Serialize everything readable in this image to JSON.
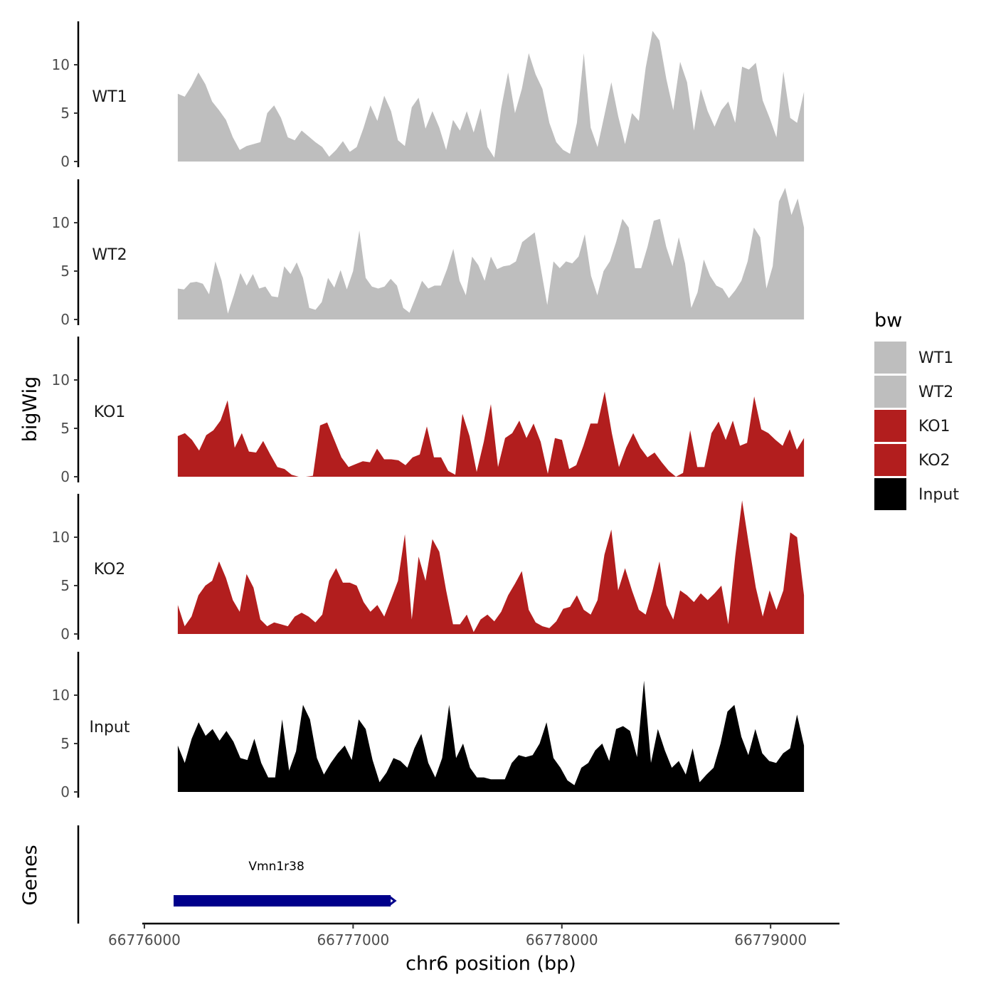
{
  "chart_data": {
    "type": "area",
    "region": "chr6",
    "xlabel": "chr6 position (bp)",
    "ylabel": "bigWig",
    "genes_label": "Genes",
    "xlim": [
      66775990,
      66779330
    ],
    "ylim": [
      0,
      14
    ],
    "x_ticks": [
      66776000,
      66777000,
      66778000,
      66779000
    ],
    "x_tick_labels": [
      "66776000",
      "66777000",
      "66778000",
      "66779000"
    ],
    "y_ticks": [
      0,
      5,
      10
    ],
    "y_tick_labels": [
      "0",
      "5",
      "10"
    ],
    "x_start": 66776160,
    "x_end": 66779160,
    "legend": {
      "title": "bw",
      "entries": [
        {
          "label": "WT1",
          "color": "#bebebe"
        },
        {
          "label": "WT2",
          "color": "#bebebe"
        },
        {
          "label": "KO1",
          "color": "#b21e1e"
        },
        {
          "label": "KO2",
          "color": "#b21e1e"
        },
        {
          "label": "Input",
          "color": "#000000"
        }
      ]
    },
    "tracks": [
      {
        "name": "WT1",
        "color": "#bebebe",
        "values": [
          7.0,
          6.7,
          7.8,
          9.2,
          8.0,
          6.2,
          5.3,
          4.3,
          2.5,
          1.2,
          1.6,
          1.8,
          2.0,
          5.0,
          5.8,
          4.5,
          2.5,
          2.2,
          3.2,
          2.6,
          2.0,
          1.5,
          0.5,
          1.2,
          2.1,
          1.0,
          1.5,
          3.5,
          5.8,
          4.2,
          6.8,
          5.2,
          2.2,
          1.6,
          5.6,
          6.6,
          3.4,
          5.2,
          3.5,
          1.2,
          4.3,
          3.2,
          5.2,
          3.0,
          5.5,
          1.5,
          0.4,
          5.5,
          9.2,
          5.0,
          7.5,
          11.2,
          9.0,
          7.5,
          4.0,
          2.0,
          1.2,
          0.8,
          4.0,
          11.2,
          3.5,
          1.5,
          4.8,
          8.2,
          4.7,
          1.8,
          5.0,
          4.2,
          9.7,
          13.5,
          12.5,
          8.5,
          5.3,
          10.3,
          8.2,
          3.2,
          7.5,
          5.2,
          3.6,
          5.3,
          6.2,
          4.0,
          9.8,
          9.5,
          10.2,
          6.3,
          4.5,
          2.5,
          9.3,
          4.5,
          4.0,
          7.2
        ]
      },
      {
        "name": "WT2",
        "color": "#bebebe",
        "values": [
          3.2,
          3.1,
          3.8,
          3.9,
          3.7,
          2.6,
          6.0,
          4.0,
          0.6,
          2.6,
          4.8,
          3.5,
          4.7,
          3.2,
          3.4,
          2.4,
          2.3,
          5.5,
          4.7,
          5.9,
          4.3,
          1.2,
          1.0,
          1.8,
          4.3,
          3.3,
          5.1,
          3.1,
          5.0,
          9.2,
          4.3,
          3.4,
          3.2,
          3.4,
          4.2,
          3.5,
          1.2,
          0.7,
          2.3,
          4.0,
          3.2,
          3.5,
          3.5,
          5.2,
          7.3,
          4.0,
          2.5,
          6.5,
          5.6,
          4.0,
          6.5,
          5.2,
          5.5,
          5.6,
          6.0,
          8.0,
          8.5,
          9.0,
          5.2,
          1.5,
          6.0,
          5.3,
          6.0,
          5.8,
          6.5,
          8.8,
          4.5,
          2.5,
          5.0,
          6.0,
          8.0,
          10.4,
          9.5,
          5.3,
          5.3,
          7.5,
          10.2,
          10.4,
          7.5,
          5.5,
          8.5,
          5.8,
          1.2,
          2.8,
          6.2,
          4.5,
          3.5,
          3.2,
          2.2,
          3.0,
          4.0,
          6.0,
          9.5,
          8.5,
          3.2,
          5.5,
          12.2,
          13.6,
          10.8,
          12.5,
          9.5
        ]
      },
      {
        "name": "KO1",
        "color": "#b21e1e",
        "values": [
          4.2,
          4.5,
          3.8,
          2.7,
          4.3,
          4.8,
          5.8,
          7.9,
          3.0,
          4.5,
          2.6,
          2.5,
          3.7,
          2.3,
          1.0,
          0.8,
          0.2,
          0.0,
          0.0,
          0.1,
          5.3,
          5.6,
          3.8,
          2.0,
          1.0,
          1.3,
          1.6,
          1.5,
          2.9,
          1.8,
          1.8,
          1.7,
          1.2,
          2.0,
          2.3,
          5.2,
          2.0,
          2.0,
          0.6,
          0.2,
          6.5,
          4.2,
          0.5,
          3.6,
          7.5,
          1.0,
          4.0,
          4.5,
          5.8,
          4.0,
          5.5,
          3.6,
          0.3,
          4.0,
          3.8,
          0.8,
          1.2,
          3.2,
          5.5,
          5.5,
          8.8,
          4.5,
          1.0,
          3.0,
          4.5,
          3.0,
          2.0,
          2.5,
          1.5,
          0.6,
          0.0,
          0.4,
          4.8,
          1.0,
          1.0,
          4.5,
          5.7,
          3.8,
          5.8,
          3.2,
          3.5,
          8.3,
          4.9,
          4.5,
          3.8,
          3.2,
          4.9,
          2.8,
          4.0
        ]
      },
      {
        "name": "KO2",
        "color": "#b21e1e",
        "values": [
          3.0,
          0.8,
          1.8,
          4.0,
          5.0,
          5.5,
          7.5,
          5.8,
          3.5,
          2.3,
          6.2,
          4.8,
          1.5,
          0.8,
          1.2,
          1.0,
          0.8,
          1.8,
          2.2,
          1.8,
          1.2,
          2.0,
          5.5,
          6.8,
          5.3,
          5.3,
          5.0,
          3.3,
          2.3,
          3.0,
          1.8,
          3.6,
          5.5,
          10.3,
          1.5,
          8.0,
          5.5,
          9.8,
          8.5,
          4.5,
          1.0,
          1.0,
          2.0,
          0.2,
          1.5,
          2.0,
          1.3,
          2.3,
          4.0,
          5.2,
          6.5,
          2.5,
          1.2,
          0.8,
          0.6,
          1.3,
          2.6,
          2.8,
          4.0,
          2.5,
          2.0,
          3.5,
          8.2,
          10.8,
          4.5,
          6.8,
          4.5,
          2.5,
          2.0,
          4.5,
          7.5,
          3.0,
          1.5,
          4.5,
          4.0,
          3.3,
          4.2,
          3.5,
          4.2,
          5.0,
          1.0,
          8.0,
          13.8,
          9.2,
          4.8,
          1.8,
          4.5,
          2.5,
          4.5,
          10.5,
          10.0,
          4.0
        ]
      },
      {
        "name": "Input",
        "color": "#000000",
        "values": [
          4.8,
          3.0,
          5.5,
          7.2,
          5.8,
          6.5,
          5.3,
          6.3,
          5.2,
          3.5,
          3.3,
          5.5,
          3.0,
          1.5,
          1.5,
          7.5,
          2.2,
          4.2,
          9.0,
          7.5,
          3.5,
          1.8,
          3.0,
          4.0,
          4.8,
          3.3,
          7.5,
          6.5,
          3.3,
          1.0,
          2.0,
          3.5,
          3.2,
          2.5,
          4.5,
          6.0,
          3.0,
          1.5,
          3.5,
          9.0,
          3.5,
          5.0,
          2.5,
          1.5,
          1.5,
          1.3,
          1.3,
          1.3,
          3.0,
          3.8,
          3.6,
          3.8,
          5.0,
          7.2,
          3.5,
          2.5,
          1.2,
          0.7,
          2.5,
          3.0,
          4.3,
          5.0,
          3.2,
          6.5,
          6.8,
          6.3,
          3.6,
          11.5,
          3.0,
          6.5,
          4.3,
          2.5,
          3.2,
          1.8,
          4.5,
          1.0,
          1.8,
          2.5,
          5.0,
          8.3,
          9.0,
          5.7,
          3.8,
          6.5,
          4.0,
          3.2,
          3.0,
          4.0,
          4.5,
          8.0,
          4.8
        ]
      }
    ],
    "genes": [
      {
        "name": "Vmn1r38",
        "start": 66776140,
        "end": 66777180,
        "color": "#00008b"
      }
    ]
  }
}
